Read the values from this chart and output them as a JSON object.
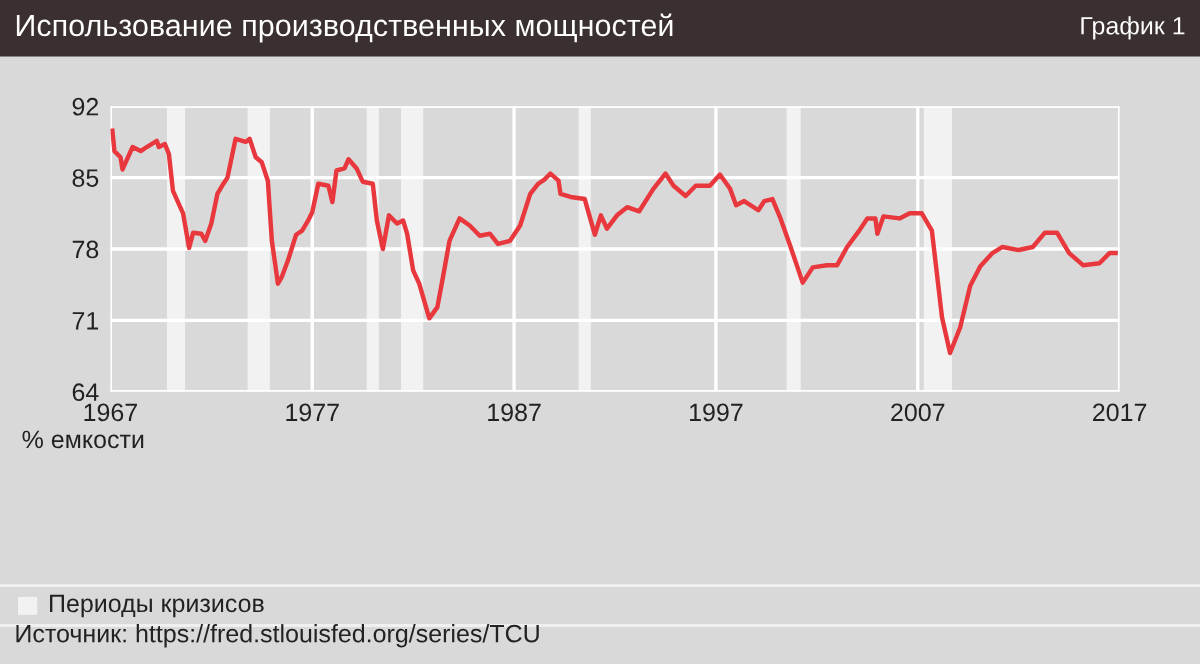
{
  "chart_data": {
    "type": "line",
    "title": "Использование производственных мощностей",
    "ylabel": "% емкости",
    "annotations": [
      "График 1",
      "Источник: https://fred.stlouisfed.org/series/TCU",
      "Периоды кризисов"
    ],
    "x": [
      1967.1,
      1967.2,
      1967.5,
      1967.6,
      1967.8,
      1968.1,
      1968.5,
      1968.8,
      1969.3,
      1969.4,
      1969.7,
      1969.9,
      1970.1,
      1970.6,
      1970.9,
      1971.1,
      1971.5,
      1971.7,
      1972.0,
      1972.3,
      1972.6,
      1972.8,
      1973.2,
      1973.7,
      1973.9,
      1974.2,
      1974.5,
      1974.8,
      1975.0,
      1975.3,
      1975.5,
      1975.8,
      1976.2,
      1976.5,
      1976.8,
      1977.0,
      1977.3,
      1977.8,
      1978.0,
      1978.2,
      1978.6,
      1978.8,
      1979.2,
      1979.5,
      1980.0,
      1980.2,
      1980.5,
      1980.8,
      1981.2,
      1981.5,
      1981.7,
      1982.0,
      1982.3,
      1982.8,
      1983.2,
      1983.5,
      1983.8,
      1984.3,
      1984.8,
      1985.3,
      1985.8,
      1986.2,
      1986.8,
      1987.3,
      1987.8,
      1988.2,
      1988.5,
      1988.8,
      1989.2,
      1989.3,
      1989.8,
      1990.5,
      1991.0,
      1991.3,
      1991.6,
      1992.1,
      1992.6,
      1993.2,
      1993.9,
      1994.5,
      1994.9,
      1995.5,
      1996.0,
      1996.7,
      1997.2,
      1997.7,
      1998.0,
      1998.4,
      1999.1,
      1999.4,
      1999.8,
      2000.2,
      2000.7,
      2001.3,
      2001.8,
      2002.5,
      2003.0,
      2003.5,
      2004.1,
      2004.5,
      2004.9,
      2005.0,
      2005.3,
      2006.1,
      2006.6,
      2007.2,
      2007.7,
      2008.2,
      2008.6,
      2009.1,
      2009.6,
      2010.1,
      2010.7,
      2011.2,
      2012.0,
      2012.7,
      2013.3,
      2013.9,
      2014.5,
      2015.2,
      2016.0,
      2016.5,
      2016.8
    ],
    "series": [
      {
        "color": "#e8383d",
        "values": [
          89.6,
          87.6,
          87.0,
          85.8,
          86.7,
          88.0,
          87.6,
          88.0,
          88.6,
          88.0,
          88.3,
          87.3,
          83.7,
          81.5,
          78.1,
          79.6,
          79.5,
          78.8,
          80.5,
          83.4,
          84.4,
          85.0,
          88.8,
          88.5,
          88.8,
          87.0,
          86.5,
          84.7,
          78.8,
          74.6,
          75.3,
          76.9,
          79.4,
          79.8,
          80.8,
          81.6,
          84.4,
          84.2,
          82.6,
          85.7,
          85.9,
          86.8,
          85.9,
          84.6,
          84.4,
          80.8,
          78.0,
          81.3,
          80.5,
          80.8,
          79.5,
          75.9,
          74.6,
          71.2,
          72.3,
          75.5,
          78.8,
          81.0,
          80.3,
          79.3,
          79.5,
          78.5,
          78.8,
          80.3,
          83.4,
          84.4,
          84.8,
          85.4,
          84.7,
          83.4,
          83.1,
          82.9,
          79.4,
          81.3,
          80.0,
          81.3,
          82.1,
          81.7,
          83.9,
          85.4,
          84.2,
          83.2,
          84.2,
          84.2,
          85.3,
          83.9,
          82.3,
          82.7,
          81.8,
          82.7,
          82.9,
          81.0,
          78.2,
          74.7,
          76.2,
          76.4,
          76.4,
          78.2,
          79.8,
          81.0,
          81.0,
          79.5,
          81.2,
          81.0,
          81.5,
          81.5,
          79.8,
          71.3,
          67.8,
          70.3,
          74.4,
          76.3,
          77.6,
          78.2,
          77.9,
          78.2,
          79.6,
          79.6,
          77.6,
          76.4,
          76.6,
          77.6,
          77.6
        ]
      }
    ],
    "xlim": [
      1967,
      2017
    ],
    "xticks": [
      1967,
      1977,
      1987,
      1997,
      2007,
      2017
    ],
    "ylim": [
      64,
      92
    ],
    "yticks": [
      64,
      71,
      78,
      85,
      92
    ],
    "bands": [
      {
        "axis": "x",
        "from": 1969.8,
        "to": 1970.7,
        "color": "#f2f2f2"
      },
      {
        "axis": "x",
        "from": 1973.8,
        "to": 1974.9,
        "color": "#f2f2f2"
      },
      {
        "axis": "x",
        "from": 1979.7,
        "to": 1980.3,
        "color": "#f2f2f2"
      },
      {
        "axis": "x",
        "from": 1981.4,
        "to": 1982.5,
        "color": "#f2f2f2"
      },
      {
        "axis": "x",
        "from": 1990.2,
        "to": 1990.8,
        "color": "#f2f2f2"
      },
      {
        "axis": "x",
        "from": 2000.5,
        "to": 2001.2,
        "color": "#f2f2f2"
      },
      {
        "axis": "x",
        "from": 2007.3,
        "to": 2008.7,
        "color": "#f2f2f2"
      }
    ],
    "grid": true
  }
}
